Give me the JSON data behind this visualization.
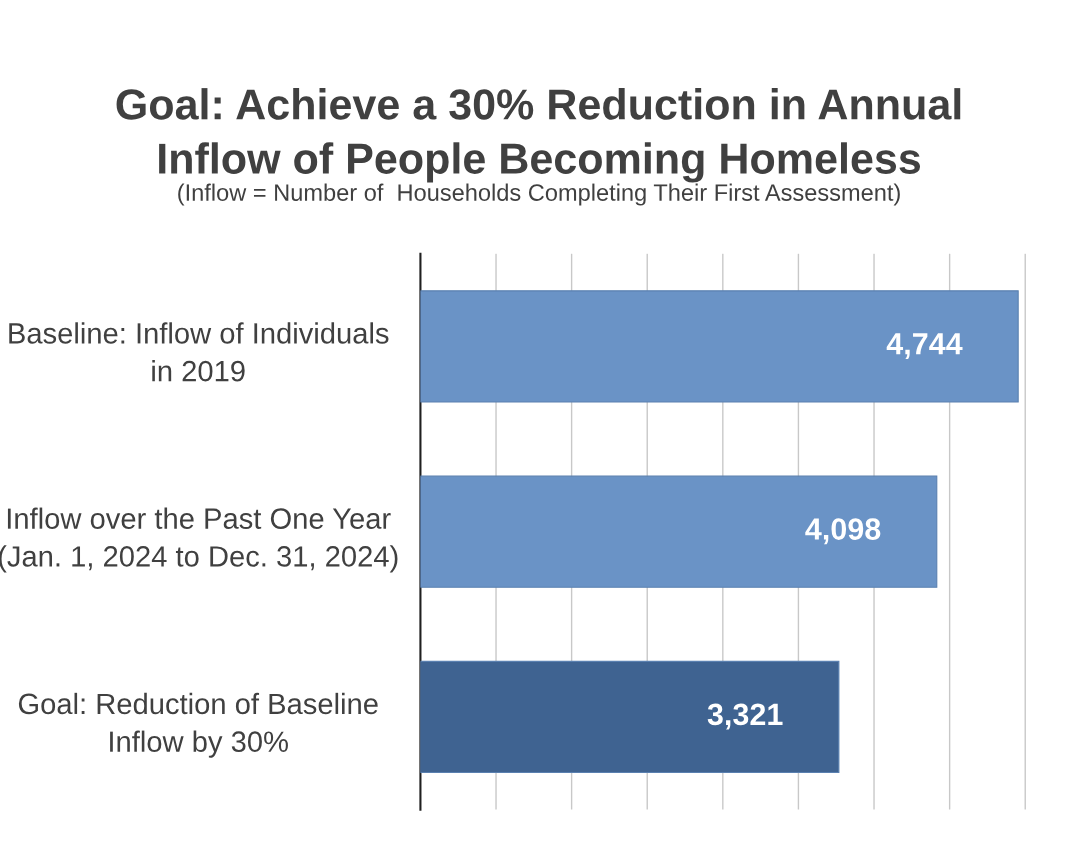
{
  "chart_data": {
    "type": "bar",
    "orientation": "horizontal",
    "title": "Goal: Achieve a 30% Reduction in Annual\nInflow of People Becoming Homeless",
    "subtitle": "(Inflow = Number of  Households Completing Their First Assessment)",
    "categories": [
      "Baseline: Inflow of Individuals\nin 2019",
      "Inflow over the Past One Year\n(Jan. 1, 2024 to Dec. 31, 2024)",
      "Goal: Reduction of Baseline\nInflow by 30%"
    ],
    "values": [
      4744,
      4098,
      3321
    ],
    "colors": [
      "#6a93c6",
      "#6a93c6",
      "#3f6391"
    ],
    "value_labels": [
      "4,744",
      "4,098",
      "3,321"
    ],
    "grid": "x",
    "tick_labels": "y"
  }
}
